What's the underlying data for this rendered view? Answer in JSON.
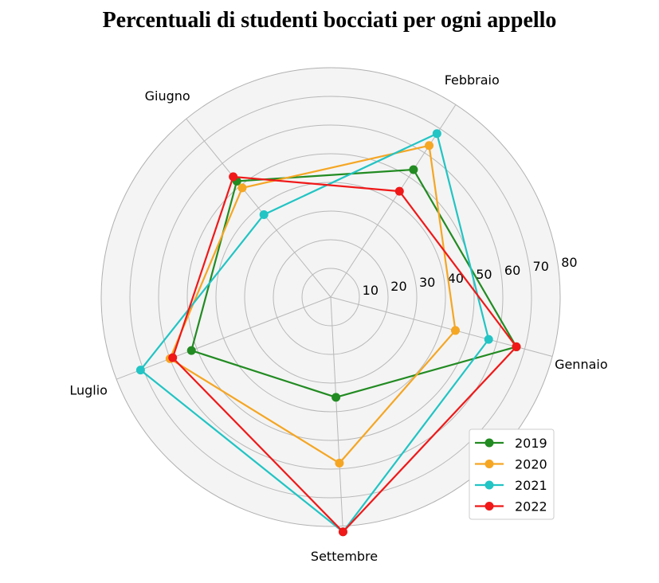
{
  "chart_data": {
    "type": "radar",
    "title": "Percentuali di studenti bocciati per ogni appello",
    "categories": [
      "Gennaio",
      "Febbraio",
      "Giugno",
      "Luglio",
      "Settembre"
    ],
    "radial_ticks": [
      "10",
      "20",
      "30",
      "40",
      "50",
      "60",
      "70",
      "80"
    ],
    "rlim": [
      0,
      80
    ],
    "grid": true,
    "legend": "lower-right",
    "series": [
      {
        "name": "2019",
        "color": "#228b22",
        "values": [
          67,
          53,
          52,
          52,
          35
        ]
      },
      {
        "name": "2020",
        "color": "#f5a623",
        "values": [
          45,
          63,
          49,
          60,
          58
        ]
      },
      {
        "name": "2021",
        "color": "#22c4c4",
        "values": [
          57,
          68,
          37,
          71,
          82
        ]
      },
      {
        "name": "2022",
        "color": "#f01818",
        "values": [
          67,
          44,
          54,
          59,
          82
        ]
      }
    ]
  }
}
